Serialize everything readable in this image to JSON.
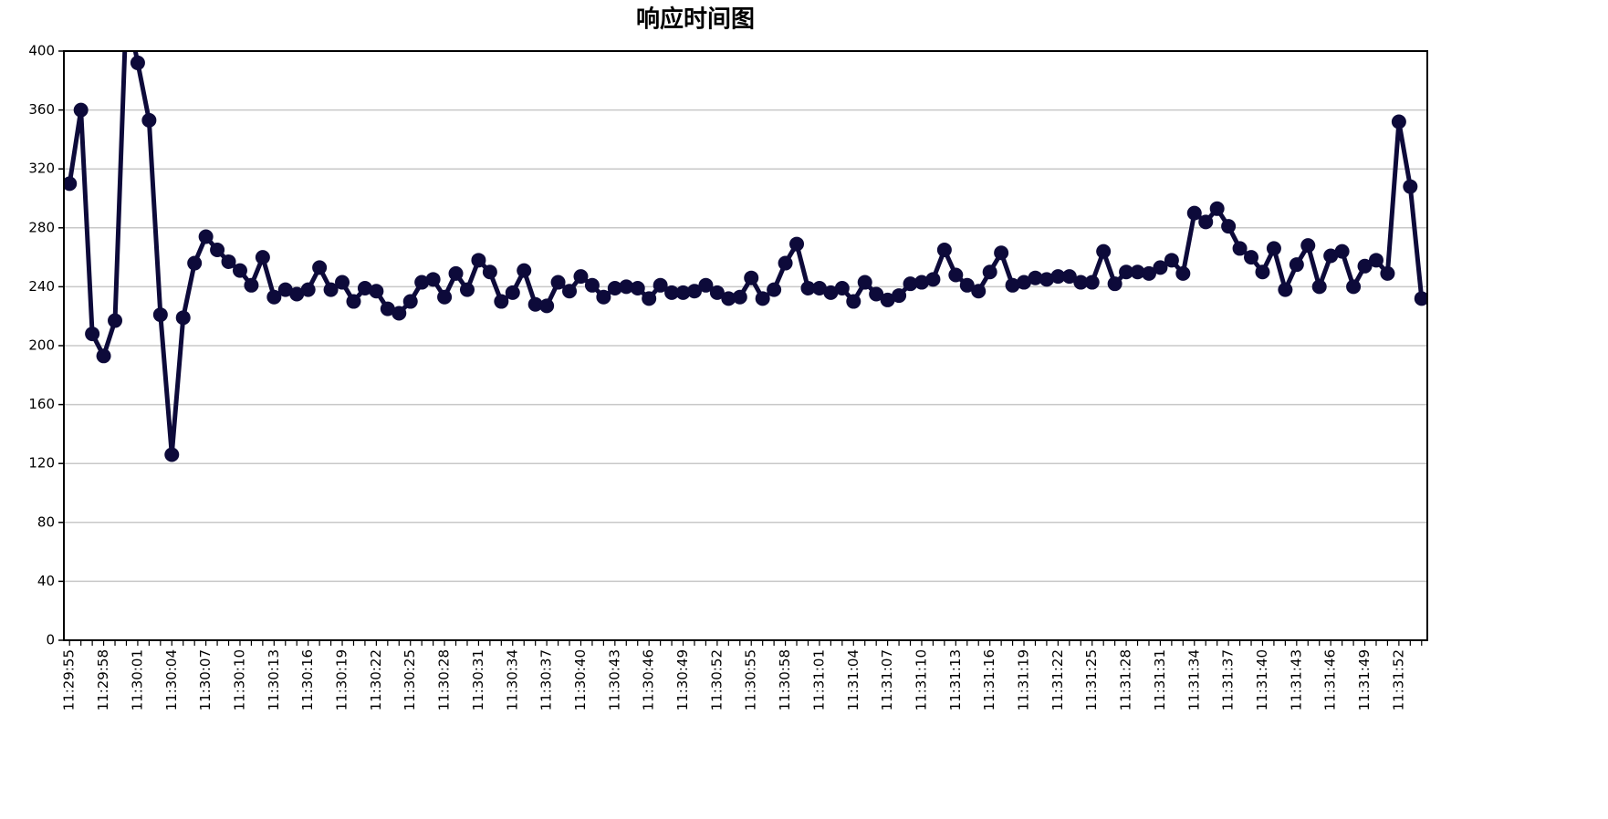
{
  "chart_data": {
    "type": "line",
    "title": "响应时间图",
    "categories": [
      "11:29:55",
      null,
      null,
      "11:29:58",
      null,
      null,
      "11:30:01",
      null,
      null,
      "11:30:04",
      null,
      null,
      "11:30:07",
      null,
      null,
      "11:30:10",
      null,
      null,
      "11:30:13",
      null,
      null,
      "11:30:16",
      null,
      null,
      "11:30:19",
      null,
      null,
      "11:30:22",
      null,
      null,
      "11:30:25",
      null,
      null,
      "11:30:28",
      null,
      null,
      "11:30:31",
      null,
      null,
      "11:30:34",
      null,
      null,
      "11:30:37",
      null,
      null,
      "11:30:40",
      null,
      null,
      "11:30:43",
      null,
      null,
      "11:30:46",
      null,
      null,
      "11:30:49",
      null,
      null,
      "11:30:52",
      null,
      null,
      "11:30:55",
      null,
      null,
      "11:30:58",
      null,
      null,
      "11:31:01",
      null,
      null,
      "11:31:04",
      null,
      null,
      "11:31:07",
      null,
      null,
      "11:31:10",
      null,
      null,
      "11:31:13",
      null,
      null,
      "11:31:16",
      null,
      null,
      "11:31:19",
      null,
      null,
      "11:31:22",
      null,
      null,
      "11:31:25",
      null,
      null,
      "11:31:28",
      null,
      null,
      "11:31:31",
      null,
      null,
      "11:31:34",
      null,
      null,
      "11:31:37",
      null,
      null,
      "11:31:40",
      null,
      null,
      "11:31:43",
      null,
      null,
      "11:31:46",
      null,
      null,
      "11:31:49",
      null,
      null,
      "11:31:52",
      null,
      null
    ],
    "values": [
      310,
      360,
      208,
      193,
      217,
      430,
      392,
      353,
      221,
      126,
      219,
      256,
      274,
      265,
      257,
      251,
      241,
      260,
      233,
      238,
      235,
      238,
      253,
      238,
      243,
      230,
      239,
      237,
      225,
      222,
      230,
      243,
      245,
      233,
      249,
      238,
      258,
      250,
      230,
      236,
      251,
      228,
      227,
      243,
      237,
      247,
      241,
      233,
      239,
      240,
      239,
      232,
      241,
      236,
      236,
      237,
      241,
      236,
      232,
      233,
      246,
      232,
      238,
      256,
      269,
      239,
      239,
      236,
      239,
      230,
      243,
      235,
      231,
      234,
      242,
      243,
      245,
      265,
      248,
      241,
      237,
      250,
      263,
      241,
      243,
      246,
      245,
      247,
      247,
      243,
      243,
      264,
      242,
      250,
      250,
      249,
      253,
      258,
      249,
      290,
      284,
      293,
      281,
      266,
      260,
      250,
      266,
      238,
      255,
      268,
      240,
      261,
      264,
      240,
      254,
      258,
      249,
      352,
      308,
      232
    ],
    "color": "#0d0a3a",
    "ylim": [
      0,
      400
    ],
    "yticks": [
      0,
      40,
      80,
      120,
      160,
      200,
      240,
      280,
      320,
      360,
      400
    ],
    "grid": true
  }
}
